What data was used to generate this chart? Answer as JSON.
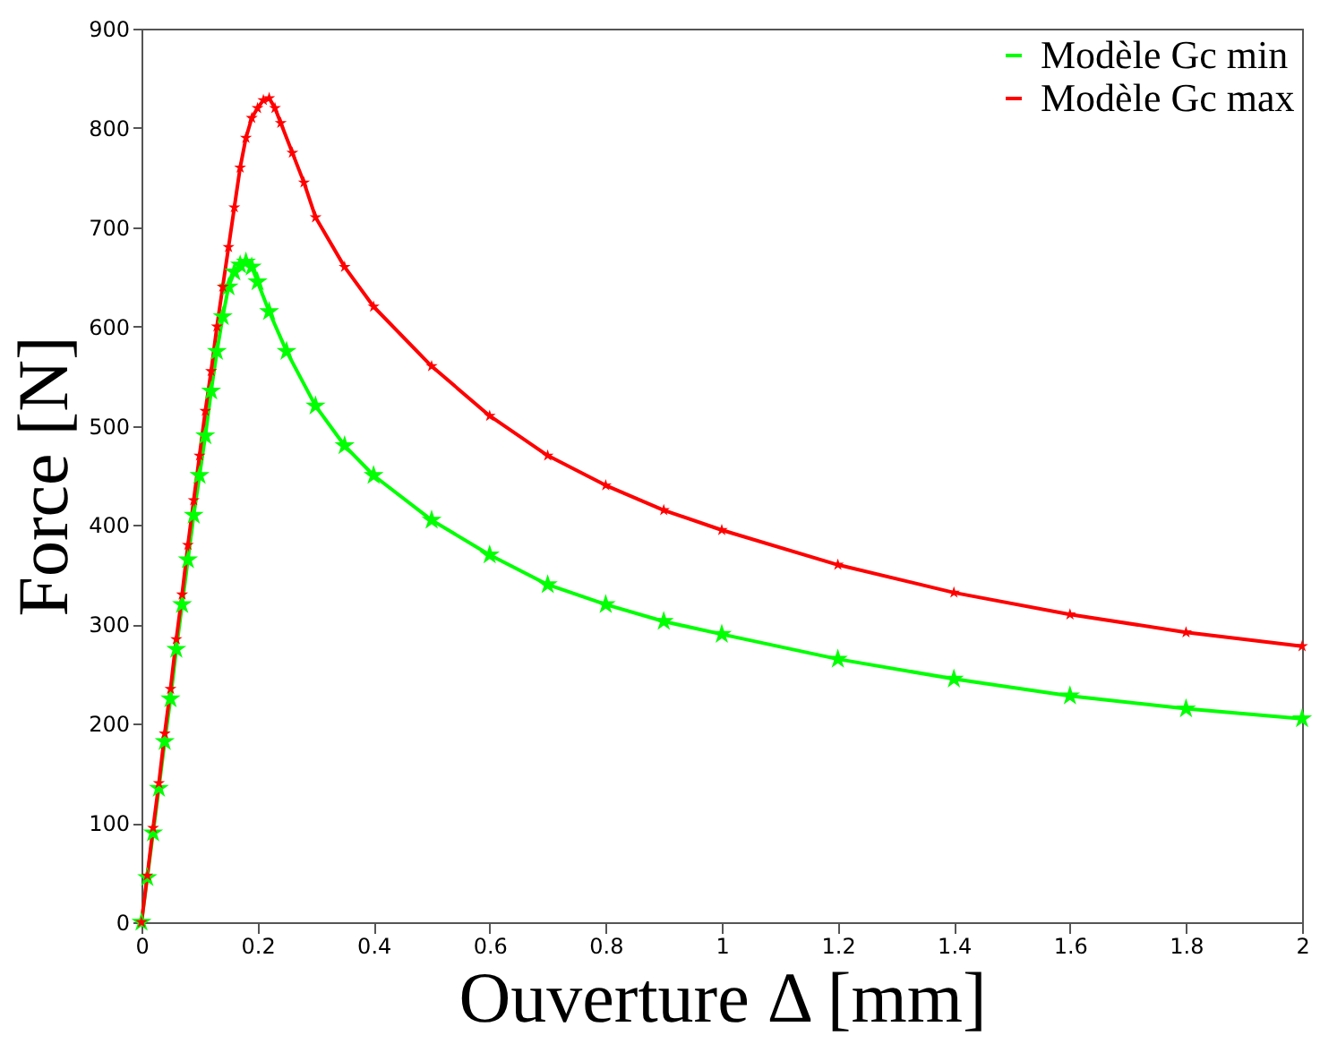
{
  "chart_data": {
    "type": "line",
    "xlabel": "Ouverture Δ [mm]",
    "ylabel": "Force [N]",
    "xlim": [
      0,
      2
    ],
    "xticks": [
      0,
      0.2,
      0.4,
      0.6,
      0.8,
      1,
      1.2,
      1.4,
      1.6,
      1.8,
      2
    ],
    "ylim": [
      0,
      900
    ],
    "yticks": [
      0,
      100,
      200,
      300,
      400,
      500,
      600,
      700,
      800,
      900
    ],
    "grid": false,
    "legend": "top right",
    "marker": "star",
    "line_style": "solid",
    "series": [
      {
        "name": "Modèle Gc min",
        "color": "#00ff00",
        "x": [
          0,
          0.01,
          0.02,
          0.03,
          0.04,
          0.05,
          0.06,
          0.07,
          0.08,
          0.09,
          0.1,
          0.11,
          0.12,
          0.13,
          0.14,
          0.15,
          0.16,
          0.17,
          0.18,
          0.19,
          0.2,
          0.22,
          0.25,
          0.3,
          0.35,
          0.4,
          0.5,
          0.6,
          0.7,
          0.8,
          0.9,
          1.0,
          1.2,
          1.4,
          1.6,
          1.8,
          2.0
        ],
        "values": [
          0,
          45,
          90,
          135,
          182,
          225,
          275,
          320,
          365,
          410,
          450,
          490,
          535,
          575,
          610,
          640,
          655,
          662,
          665,
          660,
          645,
          615,
          575,
          520,
          480,
          450,
          405,
          370,
          340,
          320,
          303,
          290,
          265,
          245,
          228,
          215,
          205
        ]
      },
      {
        "name": "Modèle Gc max",
        "color": "#ff0000",
        "x": [
          0,
          0.01,
          0.02,
          0.03,
          0.04,
          0.05,
          0.06,
          0.07,
          0.08,
          0.09,
          0.1,
          0.11,
          0.12,
          0.13,
          0.14,
          0.15,
          0.16,
          0.17,
          0.18,
          0.19,
          0.2,
          0.21,
          0.22,
          0.23,
          0.24,
          0.26,
          0.28,
          0.3,
          0.35,
          0.4,
          0.5,
          0.6,
          0.7,
          0.8,
          0.9,
          1.0,
          1.2,
          1.4,
          1.6,
          1.8,
          2.0
        ],
        "values": [
          0,
          47,
          95,
          140,
          190,
          235,
          285,
          330,
          380,
          425,
          470,
          515,
          555,
          600,
          640,
          680,
          720,
          760,
          790,
          810,
          820,
          828,
          830,
          820,
          805,
          775,
          745,
          710,
          660,
          620,
          560,
          510,
          470,
          440,
          415,
          395,
          360,
          332,
          310,
          292,
          278
        ]
      }
    ]
  }
}
